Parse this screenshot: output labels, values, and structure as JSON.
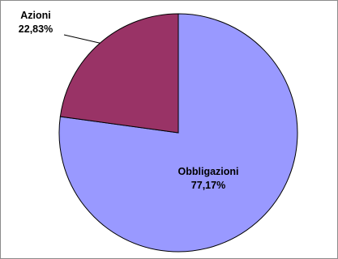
{
  "chart_data": {
    "type": "pie",
    "title": "",
    "slices": [
      {
        "name": "Obbligazioni",
        "value": 77.17,
        "value_label": "77,17%",
        "color": "#9999ff"
      },
      {
        "name": "Azioni",
        "value": 22.83,
        "value_label": "22,83%",
        "color": "#993366"
      }
    ],
    "start_angle": "12 o'clock",
    "direction": "clockwise",
    "label_position_azioni": "outside top-left with leader line",
    "label_position_obbligazioni": "inside slice"
  },
  "colors": {
    "border": "#8c8c8c",
    "slice_outline": "#000000",
    "background": "#ffffff"
  }
}
